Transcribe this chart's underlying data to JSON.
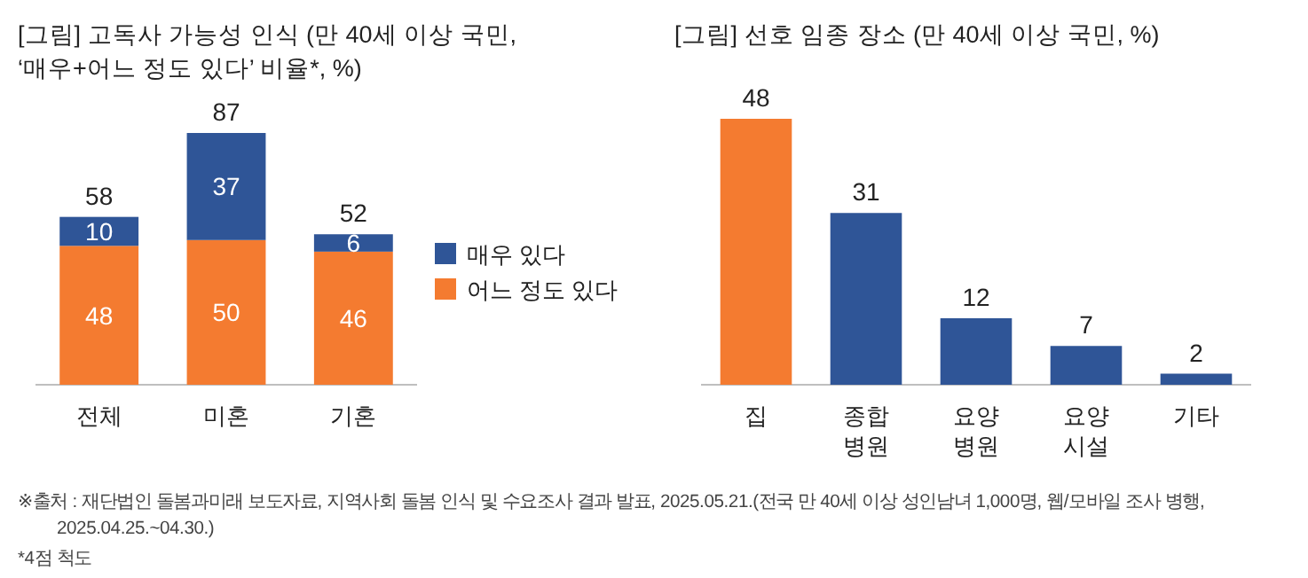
{
  "chart_data": [
    {
      "type": "bar",
      "title": "[그림] 고독사 가능성 인식 (만 40세 이상 국민,\n‘매우+어느 정도 있다’ 비율*, %)",
      "categories": [
        "전체",
        "미혼",
        "기혼"
      ],
      "stacked": true,
      "data_labels": true,
      "legend": "right",
      "series": [
        {
          "name": "어느 정도 있다",
          "color": "#f47b30",
          "values": [
            48,
            50,
            46
          ]
        },
        {
          "name": "매우 있다",
          "color": "#2f5597",
          "values": [
            10,
            37,
            6
          ]
        }
      ],
      "totals": [
        "58",
        "87",
        "52"
      ],
      "annotations": [
        "※출처 : 재단법인 돌봄과미래 보도자료, 지역사회 돌봄 인식 및 수요조사 결과 발표, 2025.05.21.(전국 만 40세 이상 성인남녀 1,000명, 웹/모바일 조사 병행,\n2025.04.25.~04.30.)",
        "*4점 척도"
      ]
    },
    {
      "type": "bar",
      "title": "[그림] 선호 임종 장소 (만 40세 이상 국민, %)",
      "categories": [
        "집",
        "종합\n병원",
        "요양\n병원",
        "요양\n시설",
        "기타"
      ],
      "values": [
        48,
        31,
        12,
        7,
        2
      ],
      "colors": [
        "#f47b30",
        "#2f5597",
        "#2f5597",
        "#2f5597",
        "#2f5597"
      ],
      "data_labels": true
    }
  ]
}
